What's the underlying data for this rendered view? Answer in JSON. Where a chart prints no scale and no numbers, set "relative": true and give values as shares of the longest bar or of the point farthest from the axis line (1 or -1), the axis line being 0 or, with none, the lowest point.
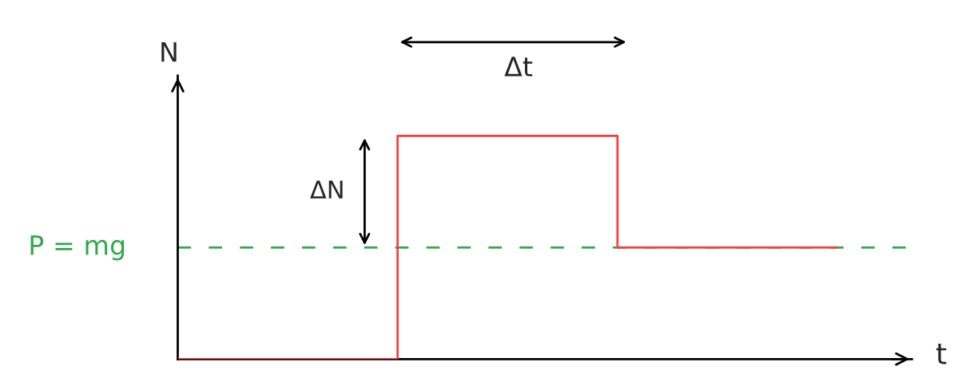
{
  "chart_data": {
    "type": "step",
    "relative": true,
    "xlabel": "t",
    "ylabel": "N",
    "categories": [
      null,
      null,
      null,
      null
    ],
    "series": [
      {
        "color": "#ff3b3b",
        "values": [
          0,
          1,
          0.5,
          0.5
        ]
      }
    ],
    "ref_lines": [
      {
        "axis": "y",
        "value": 0.5,
        "label": "P = mg",
        "color": "#2eaa4a",
        "line_style": "dashed"
      }
    ],
    "annotations": [
      "Δt",
      "ΔN"
    ],
    "marker": "none",
    "line_style": "solid",
    "grid": false,
    "legend": false
  }
}
